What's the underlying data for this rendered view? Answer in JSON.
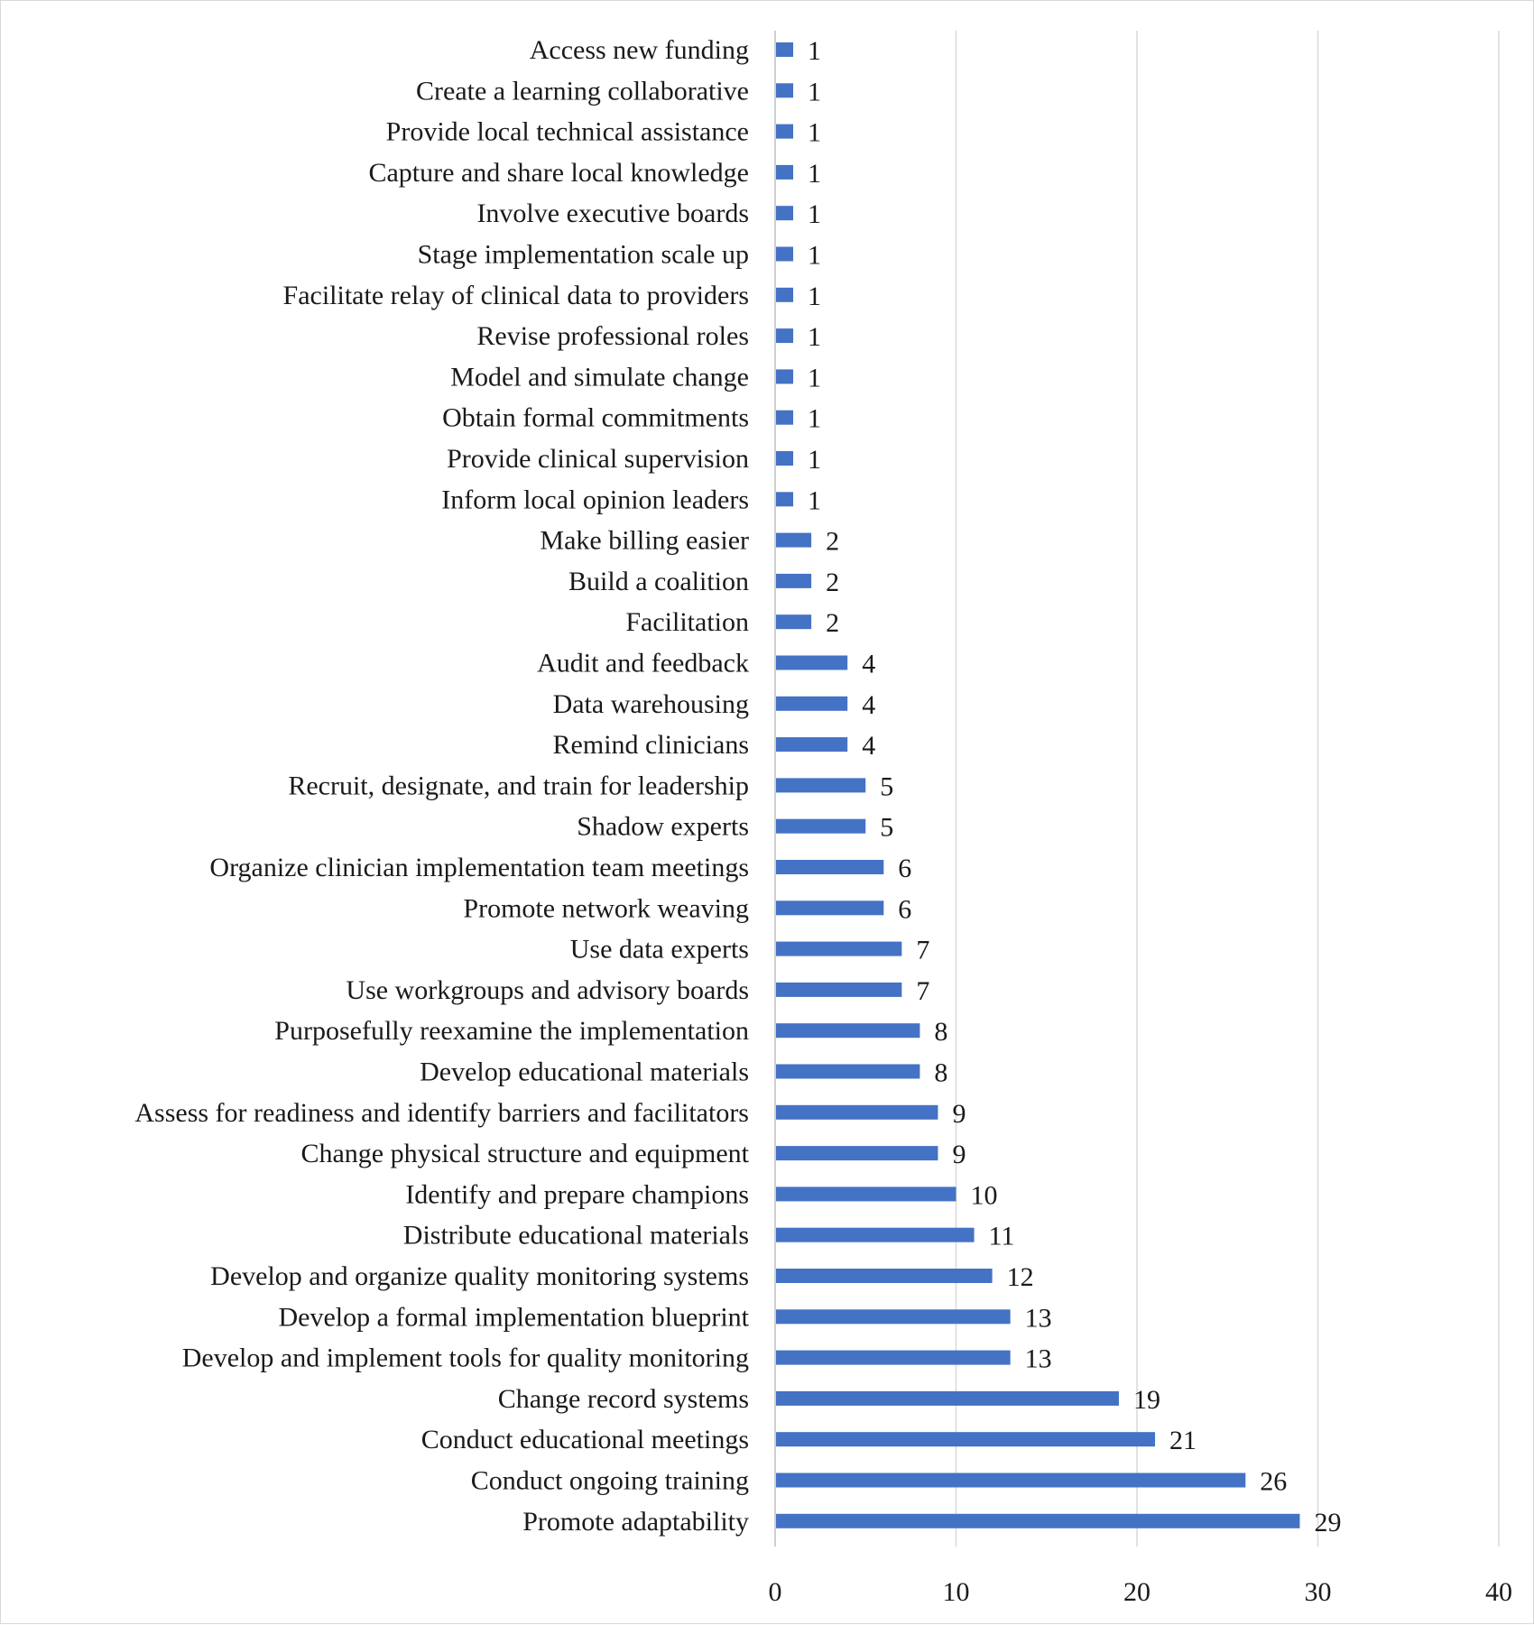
{
  "chart_data": {
    "type": "bar",
    "orientation": "horizontal",
    "title": "",
    "xlabel": "",
    "ylabel": "",
    "xlim": [
      0,
      40
    ],
    "ticks": [
      0,
      10,
      20,
      30,
      40
    ],
    "grid": true,
    "bar_color": "#4472c4",
    "categories": [
      "Access new funding",
      "Create a learning collaborative",
      "Provide local technical assistance",
      "Capture and share local knowledge",
      "Involve executive boards",
      "Stage implementation scale up",
      "Facilitate relay of clinical data to providers",
      "Revise professional roles",
      "Model and simulate change",
      "Obtain formal commitments",
      "Provide clinical supervision",
      "Inform local opinion leaders",
      "Make billing easier",
      "Build a coalition",
      "Facilitation",
      "Audit and feedback",
      "Data warehousing",
      "Remind clinicians",
      "Recruit, designate, and train for leadership",
      "Shadow experts",
      "Organize clinician implementation team meetings",
      "Promote network weaving",
      "Use data experts",
      "Use workgroups and advisory boards",
      "Purposefully reexamine the implementation",
      "Develop educational materials",
      "Assess for readiness and identify barriers and facilitators",
      "Change physical structure and equipment",
      "Identify and prepare champions",
      "Distribute educational materials",
      "Develop and organize quality monitoring systems",
      "Develop a formal implementation blueprint",
      "Develop and implement tools for quality monitoring",
      "Change record systems",
      "Conduct educational meetings",
      "Conduct ongoing training",
      "Promote adaptability"
    ],
    "values": [
      1,
      1,
      1,
      1,
      1,
      1,
      1,
      1,
      1,
      1,
      1,
      1,
      2,
      2,
      2,
      4,
      4,
      4,
      5,
      5,
      6,
      6,
      7,
      7,
      8,
      8,
      9,
      9,
      10,
      11,
      12,
      13,
      13,
      19,
      21,
      26,
      29
    ]
  }
}
